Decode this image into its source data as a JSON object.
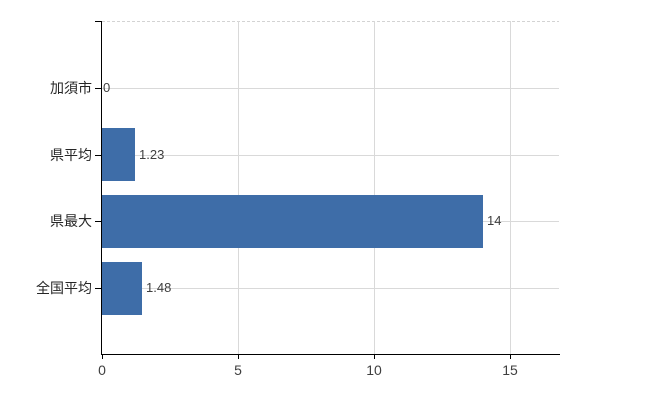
{
  "colors": {
    "background": "#ffffff",
    "bar": "#3e6da8",
    "grid": "#d9d9d9",
    "plot_top_dashed": "#d3d3d3",
    "axis": "#000000",
    "category_text": "#262626",
    "value_text": "#3f3f3f",
    "tick_text": "#3f3f3f"
  },
  "chart_data": {
    "type": "bar",
    "orientation": "horizontal",
    "title": "",
    "xlabel": "",
    "ylabel": "",
    "categories": [
      "加須市",
      "県平均",
      "県最大",
      "全国平均"
    ],
    "values": [
      0,
      1.23,
      14,
      1.48
    ],
    "value_labels": [
      "0",
      "1.23",
      "14",
      "1.48"
    ],
    "x_ticks": [
      0,
      5,
      10,
      15
    ],
    "x_tick_labels": [
      "0",
      "5",
      "10",
      "15"
    ],
    "xlim": [
      0,
      16.84
    ],
    "grid": true,
    "gridlines": "horizontal lines at each category center, vertical lines at x ticks, dashed top border",
    "legend": false
  }
}
